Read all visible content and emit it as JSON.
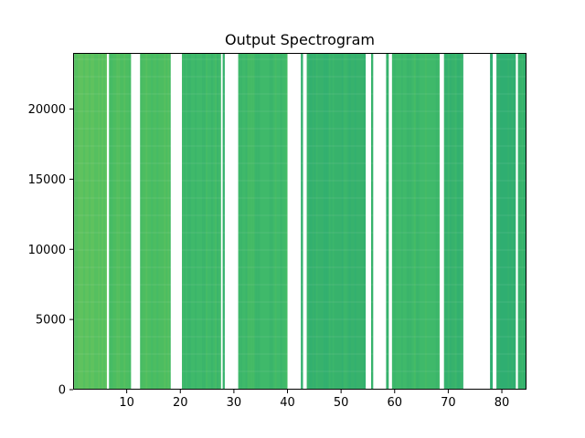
{
  "chart_data": {
    "type": "heatmap",
    "title": "Output Spectrogram",
    "xlabel": "",
    "ylabel": "",
    "xlim": [
      0,
      84.6
    ],
    "ylim": [
      0,
      24000
    ],
    "x_ticks": [
      10,
      20,
      30,
      40,
      50,
      60,
      70,
      80
    ],
    "y_ticks": [
      0,
      5000,
      10000,
      15000,
      20000
    ],
    "grid": false,
    "colormap": "viridis",
    "band_colors": [
      "#5fc25e",
      "#4cbd61",
      "#3fb96a",
      "#37b26c",
      "#2fae71"
    ],
    "segments": [
      {
        "x": [
          0.2,
          6.3
        ],
        "level": 0
      },
      {
        "x": [
          6.7,
          10.8
        ],
        "level": 1
      },
      {
        "x": [
          12.5,
          18.2
        ],
        "level": 1
      },
      {
        "x": [
          20.3,
          27.6
        ],
        "level": 2
      },
      {
        "x": [
          27.9,
          28.3
        ],
        "level": 3
      },
      {
        "x": [
          30.8,
          40.0
        ],
        "level": 2
      },
      {
        "x": [
          42.5,
          42.9
        ],
        "level": 3
      },
      {
        "x": [
          43.6,
          54.6
        ],
        "level": 3
      },
      {
        "x": [
          55.6,
          56.0
        ],
        "level": 3
      },
      {
        "x": [
          58.4,
          58.9
        ],
        "level": 3
      },
      {
        "x": [
          59.5,
          68.4
        ],
        "level": 2
      },
      {
        "x": [
          69.2,
          72.8
        ],
        "level": 3
      },
      {
        "x": [
          77.8,
          78.3
        ],
        "level": 4
      },
      {
        "x": [
          79.0,
          82.6
        ],
        "level": 4
      },
      {
        "x": [
          83.0,
          84.6
        ],
        "level": 3
      }
    ]
  }
}
